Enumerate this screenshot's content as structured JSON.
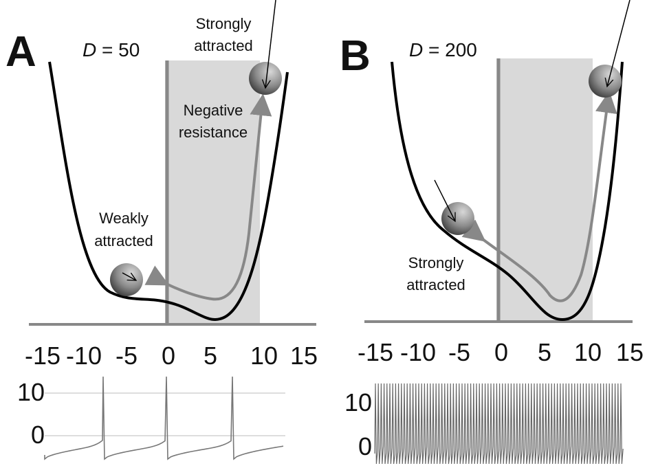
{
  "panels": [
    {
      "label": "A",
      "symbol": "D",
      "condition": " = 50",
      "notes": [
        [
          "Strongly",
          "attracted"
        ],
        [
          "Negative",
          "resistance"
        ],
        [
          "Weakly",
          "attracted"
        ]
      ],
      "x_ticks": [
        -15,
        -10,
        -5,
        0,
        5,
        10,
        15
      ],
      "trace_ticks": [
        10,
        0
      ]
    },
    {
      "label": "B",
      "symbol": "D",
      "condition": " = 200",
      "notes": [
        [
          "Strongly",
          "attracted"
        ]
      ],
      "x_ticks": [
        -15,
        -10,
        -5,
        0,
        5,
        10,
        15
      ],
      "trace_ticks": [
        10,
        0
      ]
    }
  ]
}
